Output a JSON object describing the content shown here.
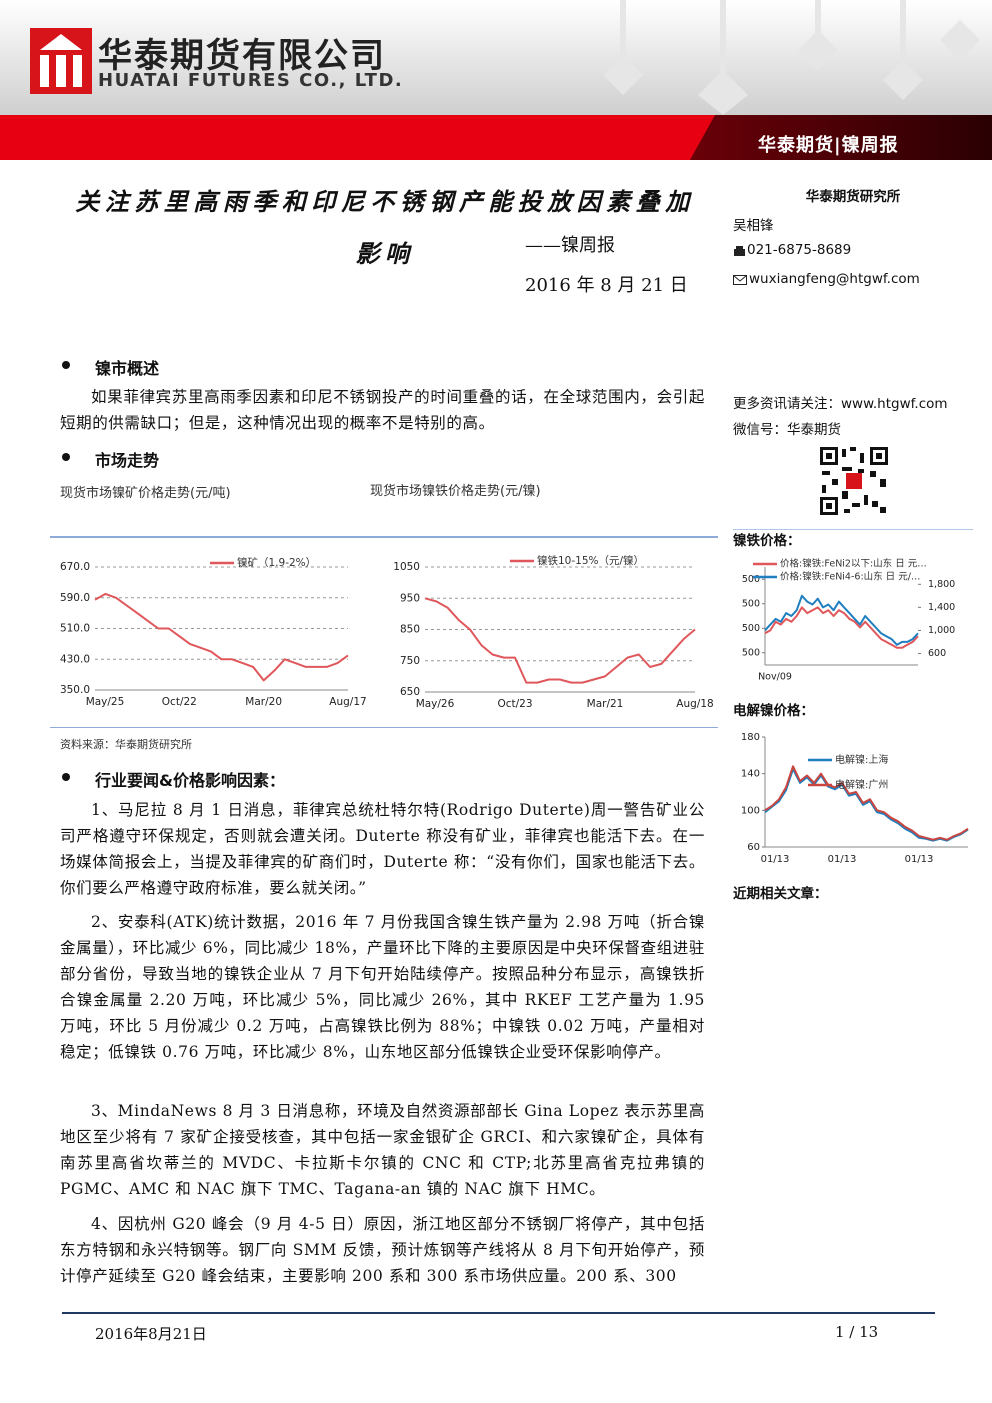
{
  "header": {
    "company_cn": "华泰期货有限公司",
    "company_en": "HUATAI FUTURES CO., LTD.",
    "tag": "华泰期货|镍周报"
  },
  "title": {
    "main": "关注苏里高雨季和印尼不锈钢产能投放因素叠加影响",
    "series": "——镍周报",
    "date": "2016 年 8 月 21 日"
  },
  "sidebar": {
    "institute": "华泰期货研究所",
    "analyst": "吴相锋",
    "phone": "021-6875-8689",
    "email": "wuxiangfeng@htgwf.com",
    "more": "更多资讯请关注：www.htgwf.com",
    "wechat": "微信号：华泰期货",
    "nife_title": "镍铁价格：",
    "electro_title": "电解镍价格：",
    "related": "近期相关文章："
  },
  "sections": [
    {
      "heading": "镍市概述",
      "paragraphs": [
        "如果菲律宾苏里高雨季因素和印尼不锈钢投产的时间重叠的话，在全球范围内，会引起短期的供需缺口；但是，这种情况出现的概率不是特别的高。"
      ]
    },
    {
      "heading": "市场走势",
      "captions": [
        "现货市场镍矿价格走势(元/吨)",
        "现货市场镍铁价格走势(元/镍)"
      ],
      "source": "资料来源：华泰期货研究所"
    },
    {
      "heading": "行业要闻&价格影响因素：",
      "paragraphs": [
        "1、马尼拉 8 月 1 日消息，菲律宾总统杜特尔特(Rodrigo Duterte)周一警告矿业公司严格遵守环保规定，否则就会遭关闭。Duterte 称没有矿业，菲律宾也能活下去。在一场媒体简报会上，当提及菲律宾的矿商们时，Duterte 称：“没有你们，国家也能活下去。你们要么严格遵守政府标准，要么就关闭。”",
        "2、安泰科(ATK)统计数据，2016 年 7 月份我国含镍生铁产量为 2.98 万吨（折合镍金属量），环比减少 6%，同比减少 18%，产量环比下降的主要原因是中央环保督查组进驻部分省份，导致当地的镍铁企业从 7 月下旬开始陆续停产。按照品种分布显示，高镍铁折合镍金属量 2.20 万吨，环比减少 5%，同比减少 26%，其中 RKEF 工艺产量为 1.95 万吨，环比 5 月份减少 0.2 万吨，占高镍铁比例为 88%；中镍铁 0.02 万吨，产量相对稳定；低镍铁 0.76 万吨，环比减少 8%，山东地区部分低镍铁企业受环保影响停产。",
        "3、MindaNews 8 月 3 日消息称，环境及自然资源部部长 Gina Lopez 表示苏里高地区至少将有 7 家矿企接受核查，其中包括一家金银矿企 GRCI、和六家镍矿企，具体有南苏里高省坎蒂兰的 MVDC、卡拉斯卡尔镇的 CNC 和 CTP;北苏里高省克拉弗镇的 PGMC、AMC 和 NAC 旗下 TMC、Tagana-an 镇的 NAC 旗下 HMC。",
        "4、因杭州 G20 峰会（9 月 4-5 日）原因，浙江地区部分不锈钢厂将停产，其中包括东方特钢和永兴特钢等。钢厂向 SMM 反馈，预计炼钢等产线将从 8 月下旬开始停产，预计停产延续至 G20 峰会结束，主要影响 200 系和 300 系市场供应量。200 系、300"
      ]
    }
  ],
  "charts": [
    {
      "type": "line",
      "grid": true,
      "categories": [
        "May/25",
        null,
        null,
        null,
        null,
        null,
        null,
        null,
        "Oct/22",
        null,
        null,
        null,
        null,
        null,
        null,
        null,
        "Mar/20",
        null,
        null,
        null,
        null,
        null,
        null,
        null,
        "Aug/17"
      ],
      "ylim": [
        350,
        670
      ],
      "yticks": [
        {
          "value": 350,
          "label": "350.0"
        },
        {
          "value": 430,
          "label": "430.0"
        },
        {
          "value": 510,
          "label": "510.0"
        },
        {
          "value": 590,
          "label": "590.0"
        },
        {
          "value": 670,
          "label": "670.0"
        }
      ],
      "series": [
        {
          "name": "镍矿（1.9-2%）",
          "color": "#e0575b",
          "values": [
            585,
            600,
            590,
            570,
            550,
            530,
            510,
            510,
            490,
            470,
            460,
            450,
            430,
            430,
            420,
            410,
            375,
            400,
            430,
            420,
            410,
            410,
            410,
            420,
            440
          ]
        }
      ]
    },
    {
      "type": "line",
      "grid": true,
      "categories": [
        "May/26",
        null,
        null,
        null,
        null,
        null,
        null,
        null,
        "Oct/23",
        null,
        null,
        null,
        null,
        null,
        null,
        null,
        "Mar/21",
        null,
        null,
        null,
        null,
        null,
        null,
        null,
        "Aug/18"
      ],
      "ylim": [
        650,
        1050
      ],
      "yticks": [
        650,
        750,
        850,
        950,
        1050
      ],
      "series": [
        {
          "name": "镍铁10-15%（元/镍）",
          "color": "#e0575b",
          "values": [
            950,
            940,
            920,
            880,
            850,
            800,
            770,
            760,
            760,
            680,
            680,
            690,
            690,
            680,
            680,
            690,
            700,
            730,
            760,
            770,
            730,
            740,
            780,
            820,
            850
          ]
        }
      ]
    },
    {
      "type": "line",
      "grid": false,
      "categories": [
        "Nov/09",
        null,
        null,
        null,
        null,
        null,
        null,
        null,
        null,
        null,
        null,
        null,
        null,
        null,
        null,
        null,
        null,
        null,
        null,
        null,
        null,
        null,
        null,
        null,
        null,
        null,
        null,
        null,
        null,
        null
      ],
      "ylim": [
        499.6,
        500.4
      ],
      "yticks": [
        {
          "value": 499.7,
          "label": "500"
        },
        {
          "value": 499.9,
          "label": "500"
        },
        {
          "value": 500.1,
          "label": "500"
        },
        {
          "value": 500.3,
          "label": "500"
        }
      ],
      "y2lim": [
        400,
        2100
      ],
      "y2ticks": [
        600,
        {
          "value": 1000,
          "label": "1,000"
        },
        {
          "value": 1400,
          "label": "1,400"
        },
        {
          "value": 1800,
          "label": "1,800"
        }
      ],
      "series": [
        {
          "name": "价格:镍铁:FeNi2以下:山东 日 元…",
          "color": "#e0575b",
          "axis": "y2",
          "values": [
            950,
            1000,
            1150,
            1100,
            1200,
            1150,
            1250,
            1400,
            1300,
            1350,
            1400,
            1300,
            1350,
            1250,
            1350,
            1300,
            1200,
            1150,
            1050,
            1150,
            1050,
            950,
            850,
            800,
            750,
            700,
            700,
            750,
            800,
            900
          ]
        },
        {
          "name": "价格:镍铁:FeNi4-6:山东 日 元/…",
          "color": "#1f7fbf",
          "axis": "y2",
          "values": [
            1000,
            1100,
            1200,
            1150,
            1300,
            1250,
            1350,
            1600,
            1500,
            1450,
            1550,
            1400,
            1450,
            1350,
            1500,
            1400,
            1300,
            1200,
            1100,
            1250,
            1150,
            1050,
            950,
            900,
            850,
            750,
            800,
            800,
            850,
            950
          ]
        }
      ]
    },
    {
      "type": "line",
      "grid": false,
      "categories": [
        "01/13",
        null,
        null,
        null,
        null,
        null,
        null,
        null,
        null,
        null,
        null,
        "01/13",
        null,
        null,
        null,
        null,
        null,
        null,
        null,
        null,
        null,
        null,
        "01/13",
        null,
        null,
        null,
        null,
        null,
        null,
        null
      ],
      "ylim": [
        60,
        180
      ],
      "yticks": [
        60,
        100,
        140,
        180
      ],
      "series": [
        {
          "name": "电解镍:上海",
          "color": "#1f7fbf",
          "values": [
            98,
            104,
            110,
            122,
            145,
            130,
            136,
            128,
            138,
            126,
            123,
            128,
            116,
            118,
            106,
            110,
            98,
            96,
            90,
            86,
            80,
            76,
            70,
            69,
            67,
            69,
            67,
            71,
            74,
            79
          ]
        },
        {
          "name": "电解镍:广州",
          "color": "#c9453f",
          "values": [
            100,
            105,
            112,
            125,
            148,
            132,
            138,
            130,
            140,
            128,
            125,
            130,
            118,
            120,
            108,
            112,
            100,
            98,
            92,
            88,
            82,
            78,
            72,
            70,
            68,
            70,
            68,
            72,
            75,
            80
          ]
        }
      ]
    }
  ],
  "footer": {
    "date": "2016年8月21日",
    "page": "1 / 13"
  }
}
